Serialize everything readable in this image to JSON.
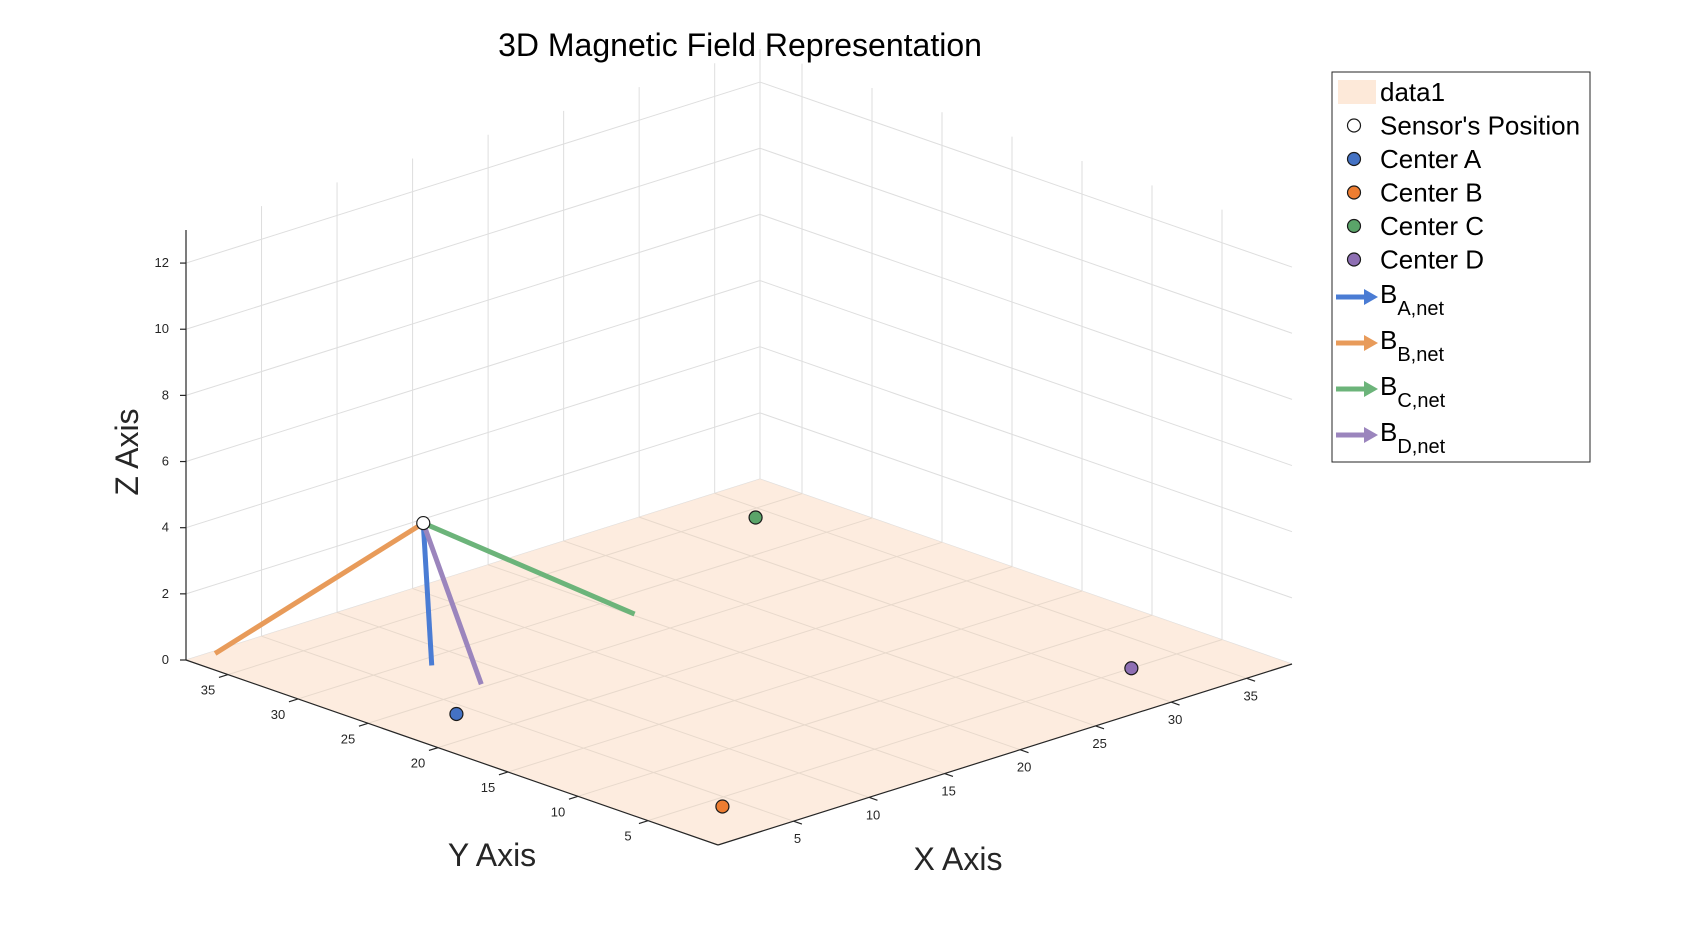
{
  "chart_data": {
    "type": "scatter",
    "title": "3D Magnetic Field Representation",
    "xlabel": "X Axis",
    "ylabel": "Y Axis",
    "zlabel": "Z Axis",
    "xlim": [
      0,
      38
    ],
    "ylim": [
      0,
      38
    ],
    "zlim": [
      0,
      13
    ],
    "x_ticks": [
      5,
      10,
      15,
      20,
      25,
      30,
      35
    ],
    "y_ticks": [
      5,
      10,
      15,
      20,
      25,
      30,
      35
    ],
    "z_ticks": [
      0,
      2,
      4,
      6,
      8,
      10,
      12
    ],
    "grid": true,
    "legend_position": "top-right",
    "plane": {
      "name": "data1",
      "z": 0,
      "color": "#fde9d9"
    },
    "sensor": {
      "name": "Sensor's Position",
      "x": 12,
      "y": 34,
      "z": 3,
      "color": "#ffffff"
    },
    "centers": [
      {
        "name": "Center A",
        "x": 4,
        "y": 23,
        "z": 0,
        "color": "#4472c4"
      },
      {
        "name": "Center B",
        "x": 4,
        "y": 4,
        "z": 0,
        "color": "#ed7d31"
      },
      {
        "name": "Center C",
        "x": 34,
        "y": 34,
        "z": 0,
        "color": "#5aa469"
      },
      {
        "name": "Center D",
        "x": 32,
        "y": 5,
        "z": 0,
        "color": "#8e6fb3"
      }
    ],
    "vectors": [
      {
        "name": "B",
        "sub": "A,net",
        "from": [
          12,
          34,
          3
        ],
        "to": [
          7,
          28,
          0.3
        ],
        "color": "#4a7cd4"
      },
      {
        "name": "B",
        "sub": "B,net",
        "from": [
          12,
          34,
          3
        ],
        "to": [
          1,
          37,
          0.2
        ],
        "color": "#e89b5a"
      },
      {
        "name": "B",
        "sub": "C,net",
        "from": [
          12,
          34,
          3
        ],
        "to": [
          19.5,
          27,
          0.2
        ],
        "color": "#6cb47a"
      },
      {
        "name": "B",
        "sub": "D,net",
        "from": [
          12,
          34,
          3
        ],
        "to": [
          7.5,
          25,
          0.1
        ],
        "color": "#9b85bd"
      }
    ]
  }
}
